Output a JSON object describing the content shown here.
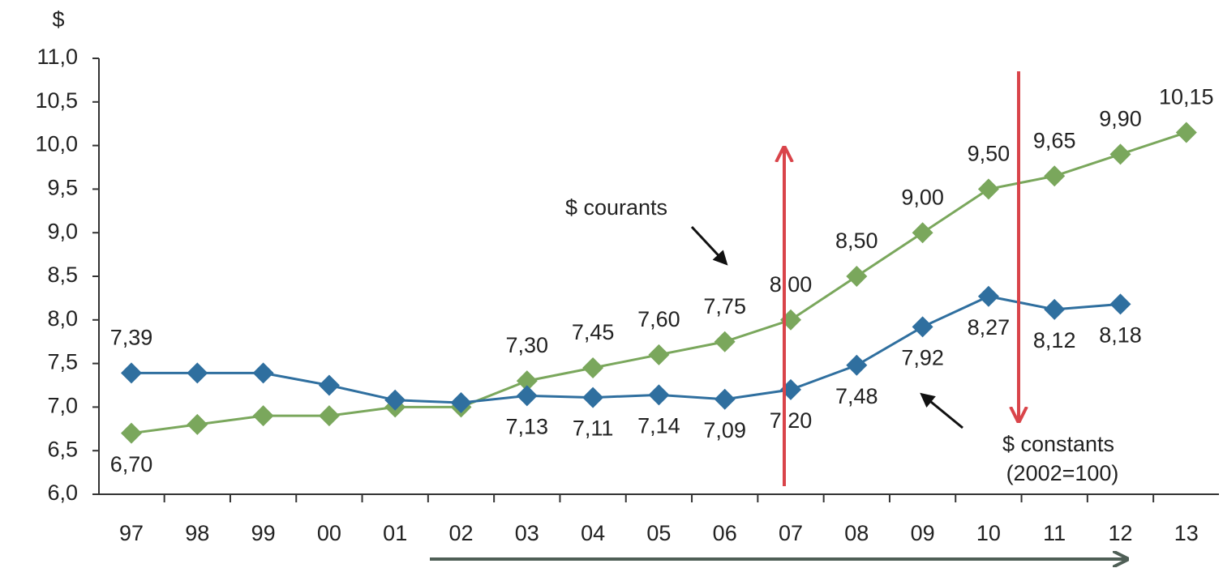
{
  "chart_data": {
    "type": "line",
    "y_label": "$",
    "categories": [
      "97",
      "98",
      "99",
      "00",
      "01",
      "02",
      "03",
      "04",
      "05",
      "06",
      "07",
      "08",
      "09",
      "10",
      "11",
      "12",
      "13"
    ],
    "series": [
      {
        "name": "$ courants",
        "color": "#7aa75c",
        "values": [
          6.7,
          6.8,
          6.9,
          6.9,
          7.0,
          7.0,
          7.3,
          7.45,
          7.6,
          7.75,
          8.0,
          8.5,
          9.0,
          9.5,
          9.65,
          9.9,
          10.15
        ],
        "value_labels": [
          "6,70",
          null,
          null,
          null,
          null,
          null,
          "7,30",
          "7,45",
          "7,60",
          "7,75",
          "8,00",
          "8,50",
          "9,00",
          "9,50",
          "9,65",
          "9,90",
          "10,15"
        ]
      },
      {
        "name": "$ constants",
        "color": "#2f6f9f",
        "values": [
          7.39,
          7.39,
          7.39,
          7.25,
          7.08,
          7.05,
          7.13,
          7.11,
          7.14,
          7.09,
          7.2,
          7.48,
          7.92,
          8.27,
          8.12,
          8.18,
          null
        ],
        "value_labels": [
          "7,39",
          null,
          null,
          null,
          null,
          null,
          "7,13",
          "7,11",
          "7,14",
          "7,09",
          "7,20",
          "7,48",
          "7,92",
          "8,27",
          "8,12",
          "8,18",
          null
        ]
      }
    ],
    "annotations": [
      "$ courants",
      "$ constants",
      "(2002=100)"
    ],
    "ylim": [
      6.0,
      11.0
    ],
    "yticks": [
      {
        "value": 6.0,
        "label": "6,0"
      },
      {
        "value": 6.5,
        "label": "6,5"
      },
      {
        "value": 7.0,
        "label": "7,0"
      },
      {
        "value": 7.5,
        "label": "7,5"
      },
      {
        "value": 8.0,
        "label": "8,0"
      },
      {
        "value": 8.5,
        "label": "8,5"
      },
      {
        "value": 9.0,
        "label": "9,0"
      },
      {
        "value": 9.5,
        "label": "9,5"
      },
      {
        "value": 10.0,
        "label": "10,0"
      },
      {
        "value": 10.5,
        "label": "10,5"
      },
      {
        "value": 11.0,
        "label": "11,0"
      }
    ],
    "grid": false
  }
}
